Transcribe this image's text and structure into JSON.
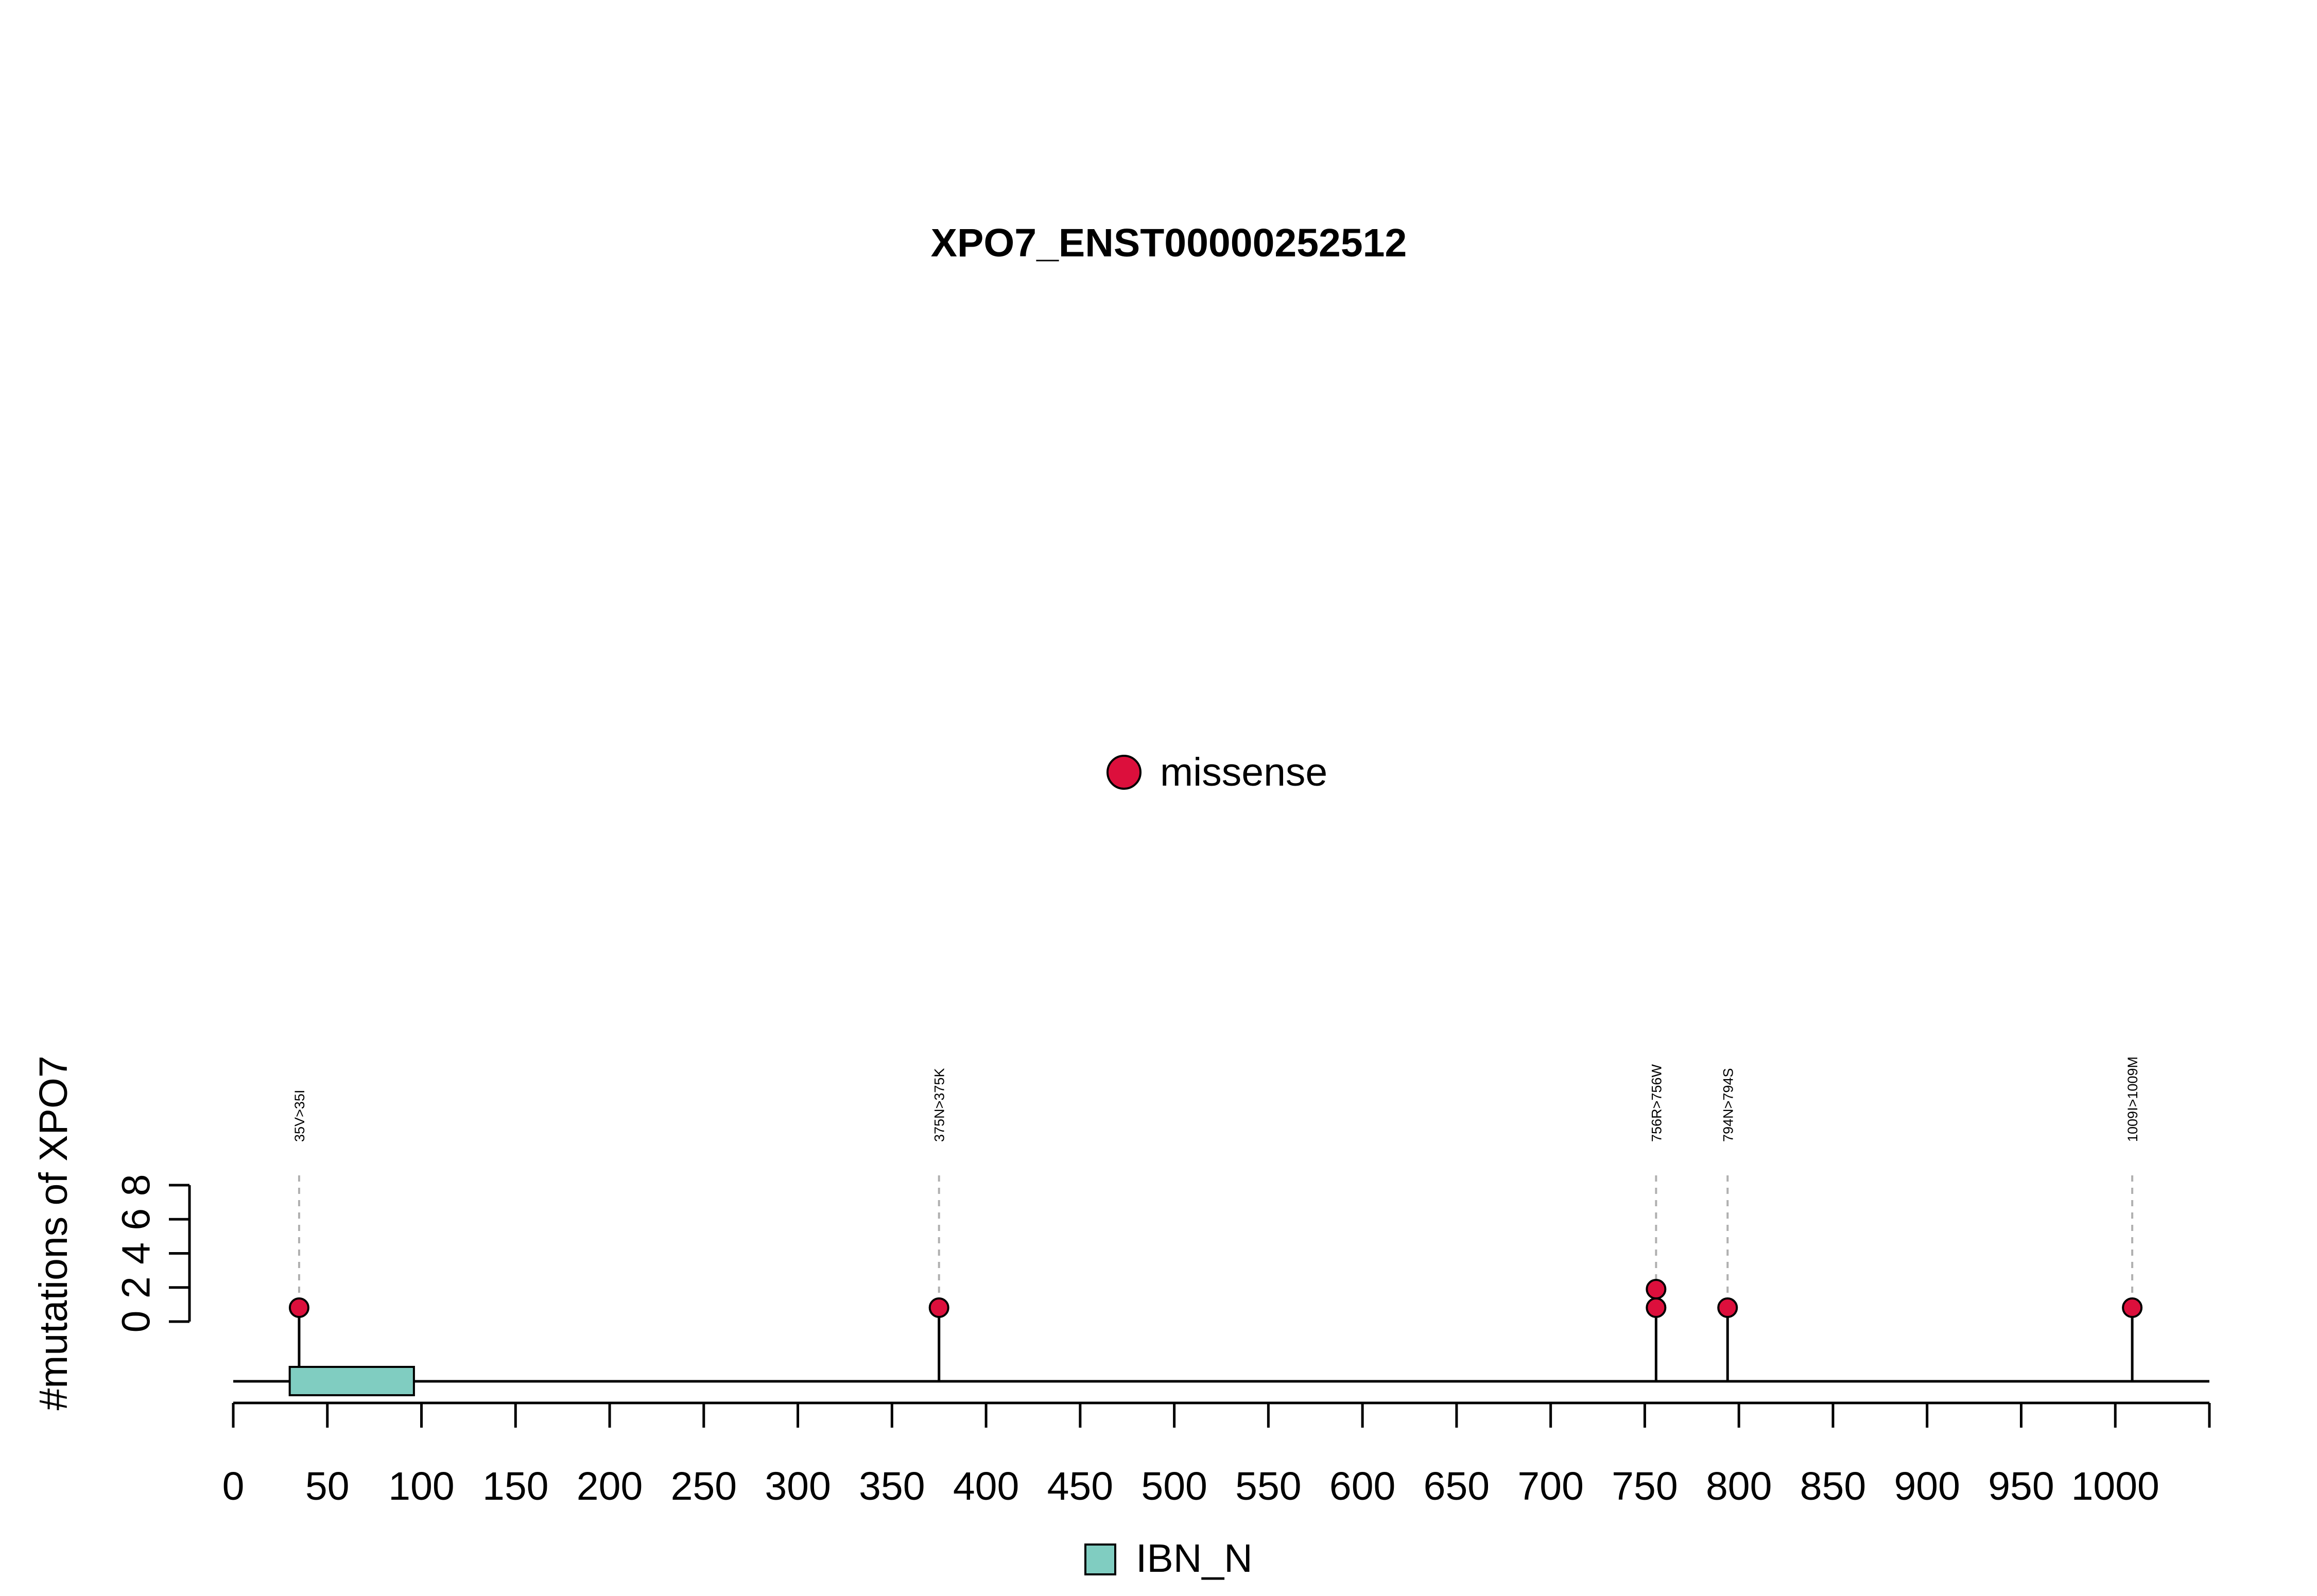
{
  "chart_data": {
    "type": "lollipop",
    "title": "XPO7_ENST00000252512",
    "ylabel": "#mutations of XPO7",
    "xlabel": "",
    "xlim": [
      0,
      1050
    ],
    "x_ticks": [
      0,
      50,
      100,
      150,
      200,
      250,
      300,
      350,
      400,
      450,
      500,
      550,
      600,
      650,
      700,
      750,
      800,
      850,
      900,
      950,
      1000
    ],
    "x_tick_labels": [
      "0",
      "50",
      "100",
      "150",
      "200",
      "250",
      "300",
      "350",
      "400",
      "450",
      "500",
      "550",
      "600",
      "650",
      "700",
      "750",
      "800",
      "850",
      "900",
      "950",
      "1000"
    ],
    "ylim": [
      0,
      8
    ],
    "y_ticks": [
      0,
      2,
      4,
      6,
      8
    ],
    "y_tick_labels": [
      "0",
      "2",
      "4",
      "6",
      "8"
    ],
    "legend_top": [
      {
        "label": "missense",
        "color": "#dc0f3c"
      }
    ],
    "domains": [
      {
        "name": "IBN_N",
        "start": 30,
        "end": 96,
        "color": "#80cdc1"
      }
    ],
    "mutations": [
      {
        "position": 35,
        "label": "35V>35I",
        "type": "missense",
        "count": 1,
        "color": "#dc0f3c"
      },
      {
        "position": 375,
        "label": "375N>375K",
        "type": "missense",
        "count": 1,
        "color": "#dc0f3c"
      },
      {
        "position": 756,
        "label": "756R>756W",
        "type": "missense",
        "count": 2,
        "color": "#dc0f3c"
      },
      {
        "position": 794,
        "label": "794N>794S",
        "type": "missense",
        "count": 1,
        "color": "#dc0f3c"
      },
      {
        "position": 1009,
        "label": "1009I>1009M",
        "type": "missense",
        "count": 1,
        "color": "#dc0f3c"
      }
    ]
  }
}
